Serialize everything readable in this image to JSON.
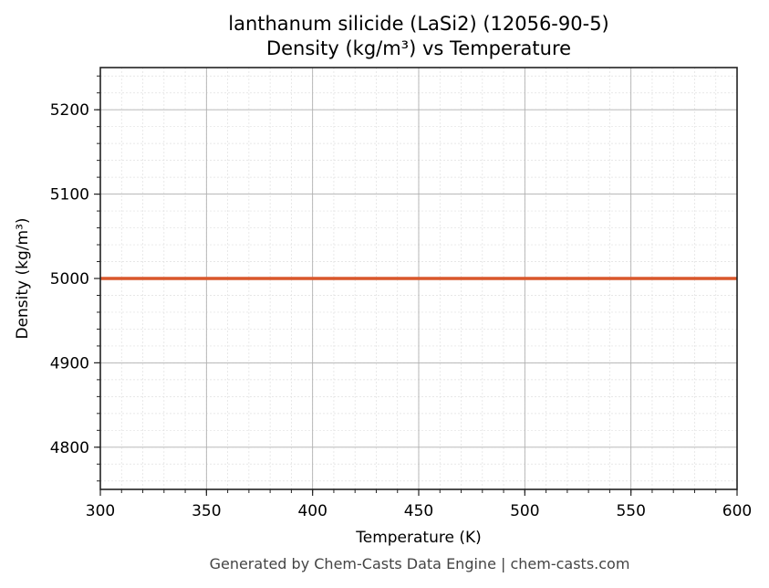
{
  "title": {
    "line1": "lanthanum silicide (LaSi2) (12056-90-5)",
    "line2": "Density (kg/m³) vs Temperature"
  },
  "footer": "Generated by Chem-Casts Data Engine | chem-casts.com",
  "colors": {
    "series": "#d9572b",
    "major_grid": "#b0b0b0",
    "minor_grid": "#e0e0e0",
    "axis": "#222222"
  },
  "chart_data": {
    "type": "line",
    "title": "lanthanum silicide (LaSi2) (12056-90-5)\nDensity (kg/m³) vs Temperature",
    "xlabel": "Temperature (K)",
    "ylabel": "Density (kg/m³)",
    "xlim": [
      300,
      600
    ],
    "ylim": [
      4750,
      5250
    ],
    "xticks": [
      300,
      350,
      400,
      450,
      500,
      550,
      600
    ],
    "yticks": [
      4800,
      4900,
      5000,
      5100,
      5200
    ],
    "x_minor_step": 10,
    "y_minor_step": 20,
    "grid": true,
    "legend": null,
    "series": [
      {
        "name": "Density",
        "color": "#d9572b",
        "x": [
          300,
          350,
          400,
          450,
          500,
          550,
          600
        ],
        "values": [
          5000,
          5000,
          5000,
          5000,
          5000,
          5000,
          5000
        ]
      }
    ]
  }
}
